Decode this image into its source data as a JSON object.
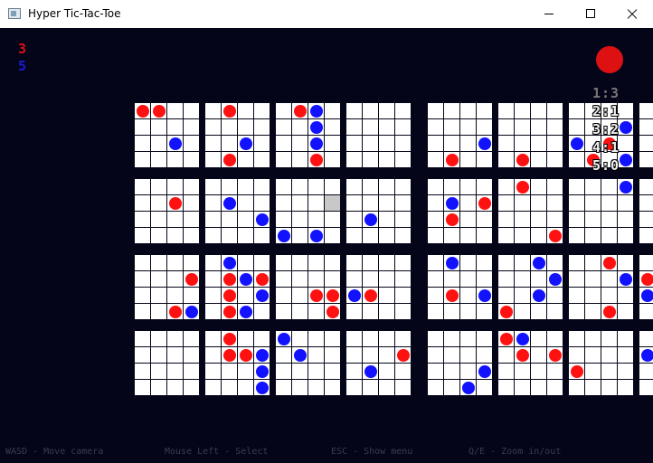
{
  "window": {
    "title": "Hyper Tic-Tac-Toe"
  },
  "scores": {
    "red": "3",
    "blue": "5"
  },
  "colors": {
    "background": "#05051a",
    "red": "#ff1111",
    "blue": "#1212ff",
    "cell": "#ffffff",
    "highlight": "#c8c8c8"
  },
  "turn": {
    "player": "red"
  },
  "options": [
    "1:3",
    "2:1",
    "3:2",
    "4:1",
    "5:0"
  ],
  "highlight": {
    "block_row": 1,
    "block_col": 2,
    "cell_row": 1,
    "cell_col": 3
  },
  "pieces": [
    [
      0,
      0,
      0,
      0,
      "red"
    ],
    [
      0,
      0,
      0,
      1,
      "red"
    ],
    [
      0,
      0,
      2,
      2,
      "blue"
    ],
    [
      0,
      1,
      0,
      1,
      "red"
    ],
    [
      0,
      1,
      2,
      2,
      "blue"
    ],
    [
      0,
      1,
      3,
      1,
      "red"
    ],
    [
      0,
      2,
      0,
      1,
      "red"
    ],
    [
      0,
      2,
      0,
      2,
      "blue"
    ],
    [
      0,
      2,
      1,
      2,
      "blue"
    ],
    [
      0,
      2,
      2,
      2,
      "blue"
    ],
    [
      0,
      2,
      3,
      2,
      "red"
    ],
    [
      0,
      4,
      2,
      3,
      "blue"
    ],
    [
      0,
      4,
      3,
      1,
      "red"
    ],
    [
      0,
      5,
      3,
      1,
      "red"
    ],
    [
      0,
      6,
      2,
      0,
      "blue"
    ],
    [
      0,
      6,
      2,
      2,
      "red"
    ],
    [
      0,
      6,
      3,
      1,
      "red"
    ],
    [
      0,
      6,
      3,
      3,
      "blue"
    ],
    [
      0,
      6,
      1,
      3,
      "blue"
    ],
    [
      1,
      0,
      1,
      2,
      "red"
    ],
    [
      1,
      1,
      1,
      1,
      "blue"
    ],
    [
      1,
      1,
      2,
      3,
      "blue"
    ],
    [
      1,
      2,
      3,
      0,
      "blue"
    ],
    [
      1,
      2,
      3,
      2,
      "blue"
    ],
    [
      1,
      3,
      2,
      1,
      "blue"
    ],
    [
      1,
      4,
      1,
      1,
      "blue"
    ],
    [
      1,
      4,
      1,
      3,
      "red"
    ],
    [
      1,
      4,
      2,
      1,
      "red"
    ],
    [
      1,
      5,
      0,
      1,
      "red"
    ],
    [
      1,
      5,
      3,
      3,
      "red"
    ],
    [
      1,
      6,
      0,
      3,
      "blue"
    ],
    [
      2,
      0,
      1,
      3,
      "red"
    ],
    [
      2,
      0,
      3,
      2,
      "red"
    ],
    [
      2,
      0,
      3,
      3,
      "blue"
    ],
    [
      2,
      1,
      0,
      1,
      "blue"
    ],
    [
      2,
      1,
      1,
      1,
      "red"
    ],
    [
      2,
      1,
      1,
      2,
      "blue"
    ],
    [
      2,
      1,
      1,
      3,
      "red"
    ],
    [
      2,
      1,
      2,
      1,
      "red"
    ],
    [
      2,
      1,
      2,
      3,
      "blue"
    ],
    [
      2,
      1,
      3,
      1,
      "red"
    ],
    [
      2,
      1,
      3,
      2,
      "blue"
    ],
    [
      2,
      2,
      2,
      2,
      "red"
    ],
    [
      2,
      2,
      2,
      3,
      "red"
    ],
    [
      2,
      2,
      3,
      3,
      "red"
    ],
    [
      2,
      3,
      2,
      0,
      "blue"
    ],
    [
      2,
      3,
      2,
      1,
      "red"
    ],
    [
      2,
      4,
      0,
      1,
      "blue"
    ],
    [
      2,
      4,
      2,
      1,
      "red"
    ],
    [
      2,
      4,
      2,
      3,
      "blue"
    ],
    [
      2,
      5,
      0,
      2,
      "blue"
    ],
    [
      2,
      5,
      1,
      3,
      "blue"
    ],
    [
      2,
      5,
      2,
      2,
      "blue"
    ],
    [
      2,
      5,
      3,
      0,
      "red"
    ],
    [
      2,
      6,
      0,
      2,
      "red"
    ],
    [
      2,
      6,
      1,
      3,
      "blue"
    ],
    [
      2,
      6,
      3,
      2,
      "red"
    ],
    [
      2,
      7,
      1,
      0,
      "red"
    ],
    [
      2,
      7,
      2,
      0,
      "blue"
    ],
    [
      3,
      1,
      0,
      1,
      "red"
    ],
    [
      3,
      1,
      1,
      1,
      "red"
    ],
    [
      3,
      1,
      1,
      2,
      "red"
    ],
    [
      3,
      1,
      1,
      3,
      "blue"
    ],
    [
      3,
      1,
      2,
      3,
      "blue"
    ],
    [
      3,
      1,
      3,
      3,
      "blue"
    ],
    [
      3,
      2,
      0,
      0,
      "blue"
    ],
    [
      3,
      2,
      1,
      1,
      "blue"
    ],
    [
      3,
      3,
      1,
      3,
      "red"
    ],
    [
      3,
      3,
      2,
      1,
      "blue"
    ],
    [
      3,
      4,
      2,
      3,
      "blue"
    ],
    [
      3,
      4,
      3,
      2,
      "blue"
    ],
    [
      3,
      5,
      0,
      0,
      "red"
    ],
    [
      3,
      5,
      0,
      1,
      "blue"
    ],
    [
      3,
      5,
      1,
      1,
      "red"
    ],
    [
      3,
      5,
      1,
      3,
      "red"
    ],
    [
      3,
      6,
      2,
      0,
      "red"
    ],
    [
      3,
      7,
      1,
      0,
      "blue"
    ]
  ],
  "controls": [
    "WASD - Move camera",
    "Mouse Left - Select",
    "ESC - Show menu",
    "Q/E - Zoom in/out"
  ]
}
